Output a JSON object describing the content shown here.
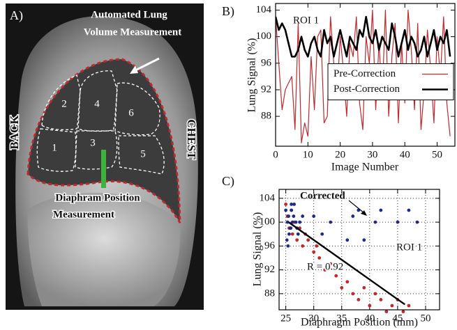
{
  "panel_a": {
    "label": "A)",
    "title_lines": [
      "Automated Lung",
      "Volume Measurement"
    ],
    "left_label": "BACK",
    "right_label": "CHEST",
    "diaphragm_lines": [
      "Diaphram Position",
      "Measurement"
    ],
    "regions": [
      "1",
      "2",
      "3",
      "4",
      "5",
      "6"
    ]
  },
  "chart_data": [
    {
      "type": "line",
      "label": "B)",
      "annotation": "ROI 1",
      "xlabel": "Image Number",
      "ylabel": "Lung Signal (%)",
      "x": [
        0,
        1,
        2,
        3,
        4,
        5,
        6,
        7,
        8,
        9,
        10,
        11,
        12,
        13,
        14,
        15,
        16,
        17,
        18,
        19,
        20,
        21,
        22,
        23,
        24,
        25,
        26,
        27,
        28,
        29,
        30,
        31,
        32,
        33,
        34,
        35,
        36,
        37,
        38,
        39,
        40,
        41,
        42,
        43,
        44,
        45,
        46,
        47,
        48,
        49,
        50,
        51,
        52,
        53,
        54
      ],
      "series": [
        {
          "name": "Pre-Correction",
          "color": "#c0282d",
          "width": 1.2,
          "values": [
            103,
            96,
            89,
            92,
            93,
            94,
            86,
            102,
            84,
            87,
            85,
            97,
            89,
            100,
            101,
            87,
            88,
            103,
            96,
            91,
            100,
            95,
            88,
            99,
            97,
            103,
            90,
            86,
            100,
            96,
            104,
            89,
            99,
            91,
            104,
            88,
            97,
            102,
            87,
            99,
            90,
            104,
            98,
            89,
            102,
            86,
            92,
            101,
            95,
            87,
            100,
            94,
            103,
            90,
            85
          ]
        },
        {
          "name": "Post-Correction",
          "color": "#000000",
          "width": 2.6,
          "values": [
            103,
            101,
            102,
            101,
            99,
            97,
            97,
            98,
            100,
            98,
            97,
            99,
            100,
            98,
            97,
            101,
            99,
            100,
            97,
            99,
            101,
            99,
            97,
            100,
            99,
            98,
            101,
            100,
            103,
            100,
            99,
            101,
            98,
            100,
            99,
            98,
            102,
            100,
            97,
            99,
            101,
            98,
            100,
            99,
            97,
            98,
            100,
            97,
            99,
            101,
            98,
            100,
            99,
            101,
            97
          ]
        }
      ],
      "xlim": [
        0,
        55.5
      ],
      "xticks": [
        0,
        10,
        20,
        30,
        40,
        50
      ],
      "ylim": [
        83.5,
        105
      ],
      "yticks": [
        88,
        92,
        96,
        100,
        104
      ],
      "grid": false,
      "legend": "center right"
    },
    {
      "type": "scatter",
      "label": "C)",
      "annotations": [
        "R = 0.92",
        "ROI 1"
      ],
      "xlabel": "Diaphragm Position (mm)",
      "ylabel": "Lung Signal (%)",
      "series": [
        {
          "name": "Corrected",
          "color": "#1f2a8a",
          "x": [
            25,
            25.3,
            25.5,
            25.8,
            26,
            26.2,
            25.2,
            25.6,
            26.4,
            26.8,
            27,
            25.4,
            26,
            27.5,
            28,
            30,
            31.5,
            33,
            36,
            37,
            38,
            39,
            41,
            42,
            45,
            47,
            48.5,
            26.5,
            25.9,
            27.2
          ],
          "values": [
            102,
            100,
            101,
            99,
            103,
            100,
            97,
            98,
            101,
            100,
            99,
            96,
            102,
            100,
            101,
            101,
            98,
            100,
            97,
            101,
            102,
            97,
            100,
            102,
            100,
            102,
            100,
            103,
            99,
            98
          ]
        },
        {
          "color": "#c0282d",
          "x": [
            25,
            25.3,
            25.6,
            26,
            26.2,
            26.5,
            27,
            27.5,
            28,
            29,
            30,
            31,
            32,
            33,
            34,
            35,
            36,
            37,
            38,
            39,
            40,
            41,
            42,
            43,
            44,
            45,
            46,
            47,
            28.5,
            30.5
          ],
          "values": [
            103,
            101,
            99,
            102,
            98,
            100,
            97,
            99,
            96,
            97,
            95,
            94,
            92,
            93,
            91,
            89,
            90,
            88,
            87,
            89,
            86,
            88,
            87,
            85,
            86,
            87,
            85,
            86,
            98,
            96
          ]
        }
      ],
      "fit": {
        "color": "#000000",
        "x": [
          25.5,
          46.3
        ],
        "values": [
          100,
          86.2
        ]
      },
      "xlim": [
        23.8,
        52.5
      ],
      "xticks": [
        25,
        30,
        35,
        40,
        45,
        50
      ],
      "ylim": [
        85.3,
        105.5
      ],
      "yticks": [
        88,
        92,
        96,
        100,
        104
      ],
      "grid": true
    }
  ]
}
